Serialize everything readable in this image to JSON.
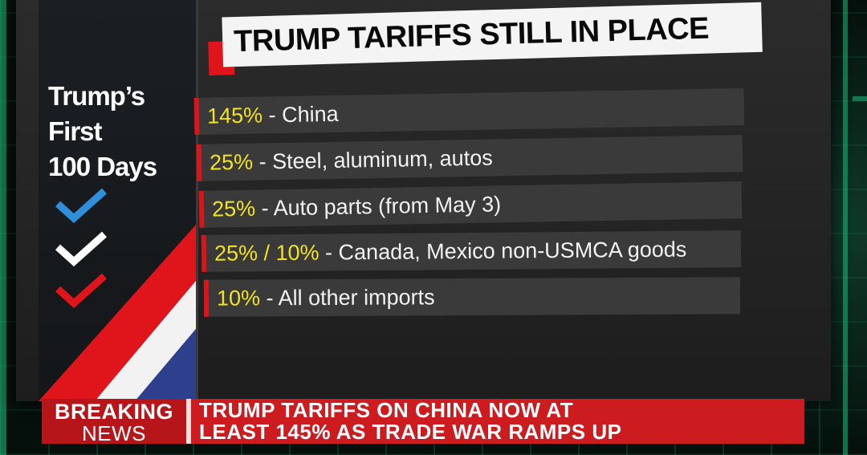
{
  "panel": {
    "title_lines": [
      "Trump’s",
      "First",
      "100 Days"
    ]
  },
  "board": {
    "title": "TRUMP TARIFFS STILL IN PLACE",
    "rows": [
      {
        "rate": "145%",
        "text": " - China"
      },
      {
        "rate": "25%",
        "text": " - Steel, aluminum, autos"
      },
      {
        "rate": "25%",
        "text": " - Auto parts (from May 3)"
      },
      {
        "rate": "25% / 10%",
        "text": " -  Canada, Mexico non-USMCA goods"
      },
      {
        "rate": "10%",
        "text": " - All other imports"
      }
    ]
  },
  "ticker": {
    "label_line1": "BREAKING",
    "label_line2": "NEWS",
    "headline_line1": "TRUMP TARIFFS ON CHINA NOW AT",
    "headline_line2": "LEAST 145% AS TRADE WAR RAMPS UP"
  },
  "colors": {
    "accent_red": "#e0141b",
    "rate_yellow": "#f2e227",
    "check_blue": "#2f8fd8",
    "check_white": "#ffffff",
    "check_red": "#e0141b"
  },
  "icons": [
    "checkmark-blue-icon",
    "checkmark-white-icon",
    "checkmark-red-icon"
  ]
}
